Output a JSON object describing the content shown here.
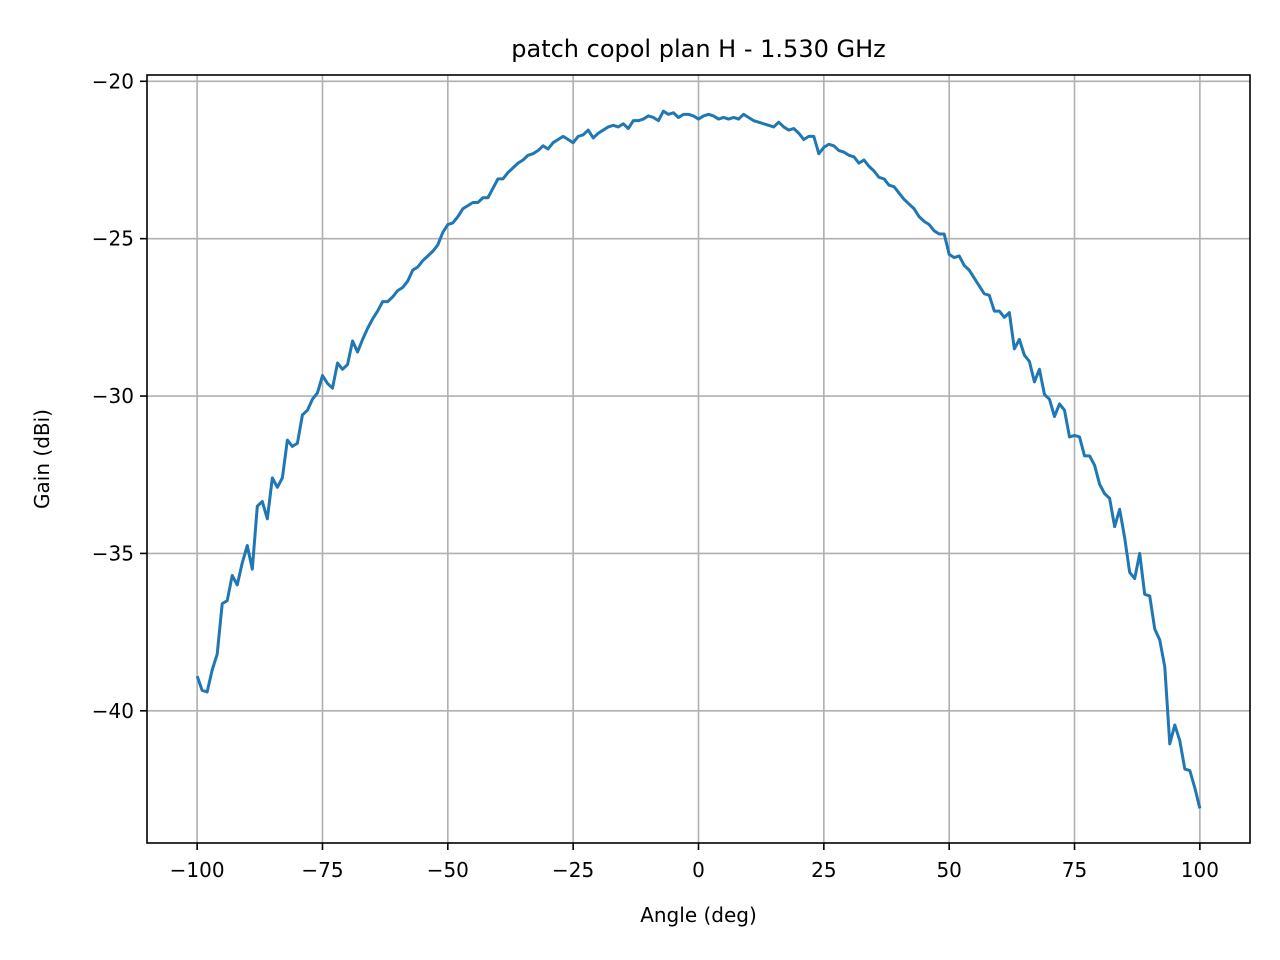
{
  "chart_data": {
    "type": "line",
    "title": "patch copol plan H - 1.530 GHz",
    "xlabel": "Angle (deg)",
    "ylabel": "Gain (dBi)",
    "xlim": [
      -110,
      110
    ],
    "ylim": [
      -44.2,
      -19.8
    ],
    "xticks": [
      -100,
      -75,
      -50,
      -25,
      0,
      25,
      50,
      75,
      100
    ],
    "xtick_labels": [
      "−100",
      "−75",
      "−50",
      "−25",
      "0",
      "25",
      "50",
      "75",
      "100"
    ],
    "yticks": [
      -40,
      -35,
      -30,
      -25,
      -20
    ],
    "ytick_labels": [
      "−40",
      "−35",
      "−30",
      "−25",
      "−20"
    ],
    "grid": true,
    "series": [
      {
        "color": "#1f77b4",
        "points": [
          [
            -100,
            -38.9
          ],
          [
            -99,
            -39.35
          ],
          [
            -98,
            -39.4
          ],
          [
            -97,
            -38.7
          ],
          [
            -96,
            -38.2
          ],
          [
            -95,
            -36.6
          ],
          [
            -94,
            -36.5
          ],
          [
            -93,
            -35.7
          ],
          [
            -92,
            -36.0
          ],
          [
            -91,
            -35.3
          ],
          [
            -90,
            -34.75
          ],
          [
            -89,
            -35.5
          ],
          [
            -88,
            -33.5
          ],
          [
            -87,
            -33.35
          ],
          [
            -86,
            -33.9
          ],
          [
            -85,
            -32.6
          ],
          [
            -84,
            -32.9
          ],
          [
            -83,
            -32.6
          ],
          [
            -82,
            -31.4
          ],
          [
            -81,
            -31.6
          ],
          [
            -80,
            -31.5
          ],
          [
            -79,
            -30.6
          ],
          [
            -78,
            -30.45
          ],
          [
            -77,
            -30.1
          ],
          [
            -76,
            -29.9
          ],
          [
            -75,
            -29.35
          ],
          [
            -74,
            -29.6
          ],
          [
            -73,
            -29.75
          ],
          [
            -72,
            -28.95
          ],
          [
            -71,
            -29.15
          ],
          [
            -70,
            -29.0
          ],
          [
            -69,
            -28.25
          ],
          [
            -68,
            -28.6
          ],
          [
            -67,
            -28.2
          ],
          [
            -66,
            -27.85
          ],
          [
            -65,
            -27.55
          ],
          [
            -64,
            -27.3
          ],
          [
            -63,
            -27.0
          ],
          [
            -62,
            -27.0
          ],
          [
            -61,
            -26.85
          ],
          [
            -60,
            -26.65
          ],
          [
            -59,
            -26.55
          ],
          [
            -58,
            -26.35
          ],
          [
            -57,
            -26.0
          ],
          [
            -56,
            -25.9
          ],
          [
            -55,
            -25.7
          ],
          [
            -54,
            -25.55
          ],
          [
            -53,
            -25.4
          ],
          [
            -52,
            -25.2
          ],
          [
            -51,
            -24.8
          ],
          [
            -50,
            -24.55
          ],
          [
            -49,
            -24.5
          ],
          [
            -48,
            -24.3
          ],
          [
            -47,
            -24.05
          ],
          [
            -46,
            -23.95
          ],
          [
            -45,
            -23.85
          ],
          [
            -44,
            -23.85
          ],
          [
            -43,
            -23.7
          ],
          [
            -42,
            -23.7
          ],
          [
            -41,
            -23.4
          ],
          [
            -40,
            -23.1
          ],
          [
            -39,
            -23.1
          ],
          [
            -38,
            -22.9
          ],
          [
            -37,
            -22.75
          ],
          [
            -36,
            -22.6
          ],
          [
            -35,
            -22.5
          ],
          [
            -34,
            -22.35
          ],
          [
            -33,
            -22.3
          ],
          [
            -32,
            -22.2
          ],
          [
            -31,
            -22.05
          ],
          [
            -30,
            -22.15
          ],
          [
            -29,
            -21.95
          ],
          [
            -28,
            -21.85
          ],
          [
            -27,
            -21.75
          ],
          [
            -26,
            -21.85
          ],
          [
            -25,
            -21.95
          ],
          [
            -24,
            -21.75
          ],
          [
            -23,
            -21.7
          ],
          [
            -22,
            -21.55
          ],
          [
            -21,
            -21.8
          ],
          [
            -20,
            -21.65
          ],
          [
            -19,
            -21.55
          ],
          [
            -18,
            -21.45
          ],
          [
            -17,
            -21.4
          ],
          [
            -16,
            -21.45
          ],
          [
            -15,
            -21.35
          ],
          [
            -14,
            -21.5
          ],
          [
            -13,
            -21.25
          ],
          [
            -12,
            -21.25
          ],
          [
            -11,
            -21.2
          ],
          [
            -10,
            -21.1
          ],
          [
            -9,
            -21.15
          ],
          [
            -8,
            -21.25
          ],
          [
            -7,
            -20.95
          ],
          [
            -6,
            -21.05
          ],
          [
            -5,
            -21.0
          ],
          [
            -4,
            -21.15
          ],
          [
            -3,
            -21.05
          ],
          [
            -2,
            -21.05
          ],
          [
            -1,
            -21.1
          ],
          [
            0,
            -21.2
          ],
          [
            1,
            -21.1
          ],
          [
            2,
            -21.05
          ],
          [
            3,
            -21.1
          ],
          [
            4,
            -21.2
          ],
          [
            5,
            -21.15
          ],
          [
            6,
            -21.2
          ],
          [
            7,
            -21.15
          ],
          [
            8,
            -21.2
          ],
          [
            9,
            -21.05
          ],
          [
            10,
            -21.15
          ],
          [
            11,
            -21.25
          ],
          [
            12,
            -21.3
          ],
          [
            13,
            -21.35
          ],
          [
            14,
            -21.4
          ],
          [
            15,
            -21.45
          ],
          [
            16,
            -21.3
          ],
          [
            17,
            -21.45
          ],
          [
            18,
            -21.55
          ],
          [
            19,
            -21.5
          ],
          [
            20,
            -21.65
          ],
          [
            21,
            -21.85
          ],
          [
            22,
            -21.75
          ],
          [
            23,
            -21.75
          ],
          [
            24,
            -22.3
          ],
          [
            25,
            -22.1
          ],
          [
            26,
            -22.0
          ],
          [
            27,
            -22.05
          ],
          [
            28,
            -22.2
          ],
          [
            29,
            -22.25
          ],
          [
            30,
            -22.35
          ],
          [
            31,
            -22.4
          ],
          [
            32,
            -22.6
          ],
          [
            33,
            -22.5
          ],
          [
            34,
            -22.7
          ],
          [
            35,
            -22.85
          ],
          [
            36,
            -23.05
          ],
          [
            37,
            -23.1
          ],
          [
            38,
            -23.3
          ],
          [
            39,
            -23.35
          ],
          [
            40,
            -23.55
          ],
          [
            41,
            -23.75
          ],
          [
            42,
            -23.9
          ],
          [
            43,
            -24.05
          ],
          [
            44,
            -24.3
          ],
          [
            45,
            -24.45
          ],
          [
            46,
            -24.55
          ],
          [
            47,
            -24.75
          ],
          [
            48,
            -24.85
          ],
          [
            49,
            -24.85
          ],
          [
            50,
            -25.5
          ],
          [
            51,
            -25.6
          ],
          [
            52,
            -25.55
          ],
          [
            53,
            -25.85
          ],
          [
            54,
            -26.0
          ],
          [
            55,
            -26.25
          ],
          [
            56,
            -26.5
          ],
          [
            57,
            -26.75
          ],
          [
            58,
            -26.8
          ],
          [
            59,
            -27.3
          ],
          [
            60,
            -27.3
          ],
          [
            61,
            -27.5
          ],
          [
            62,
            -27.35
          ],
          [
            63,
            -28.5
          ],
          [
            64,
            -28.2
          ],
          [
            65,
            -28.7
          ],
          [
            66,
            -28.9
          ],
          [
            67,
            -29.55
          ],
          [
            68,
            -29.15
          ],
          [
            69,
            -29.95
          ],
          [
            70,
            -30.1
          ],
          [
            71,
            -30.65
          ],
          [
            72,
            -30.25
          ],
          [
            73,
            -30.45
          ],
          [
            74,
            -31.3
          ],
          [
            75,
            -31.25
          ],
          [
            76,
            -31.3
          ],
          [
            77,
            -31.9
          ],
          [
            78,
            -31.9
          ],
          [
            79,
            -32.2
          ],
          [
            80,
            -32.8
          ],
          [
            81,
            -33.1
          ],
          [
            82,
            -33.25
          ],
          [
            83,
            -34.15
          ],
          [
            84,
            -33.6
          ],
          [
            85,
            -34.5
          ],
          [
            86,
            -35.6
          ],
          [
            87,
            -35.8
          ],
          [
            88,
            -35.0
          ],
          [
            89,
            -36.3
          ],
          [
            90,
            -36.35
          ],
          [
            91,
            -37.4
          ],
          [
            92,
            -37.75
          ],
          [
            93,
            -38.6
          ],
          [
            94,
            -41.05
          ],
          [
            95,
            -40.45
          ],
          [
            96,
            -40.95
          ],
          [
            97,
            -41.85
          ],
          [
            98,
            -41.9
          ],
          [
            99,
            -42.45
          ],
          [
            100,
            -43.1
          ]
        ]
      }
    ]
  }
}
